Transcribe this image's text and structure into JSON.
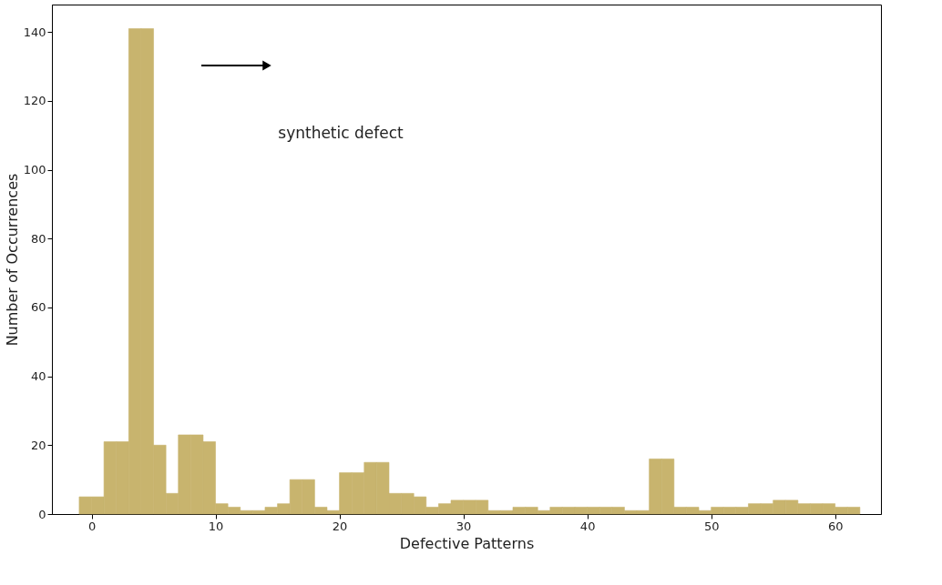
{
  "chart_data": {
    "type": "histogram",
    "xlabel": "Defective Patterns",
    "ylabel": "Number of Occurrences",
    "bins": [
      -1,
      0,
      1,
      2,
      3,
      4,
      5,
      6,
      7,
      8,
      9,
      10,
      11,
      12,
      13,
      14,
      15,
      16,
      17,
      18,
      19,
      20,
      21,
      22,
      23,
      24,
      25,
      26,
      27,
      28,
      29,
      30,
      31,
      32,
      33,
      34,
      35,
      36,
      37,
      38,
      39,
      40,
      41,
      42,
      43,
      44,
      45,
      46,
      47,
      48,
      49,
      50,
      51,
      52,
      53,
      54,
      55,
      56,
      57,
      58,
      59,
      60,
      61,
      62
    ],
    "values": [
      5,
      5,
      21,
      21,
      141,
      141,
      20,
      6,
      23,
      23,
      21,
      3,
      2,
      1,
      1,
      2,
      3,
      10,
      10,
      2,
      1,
      12,
      12,
      15,
      15,
      6,
      6,
      5,
      2,
      3,
      4,
      4,
      4,
      1,
      1,
      2,
      2,
      1,
      2,
      2,
      2,
      2,
      2,
      2,
      1,
      1,
      16,
      16,
      2,
      2,
      1,
      2,
      2,
      2,
      3,
      3,
      4,
      4,
      3,
      3,
      3,
      2,
      2
    ],
    "color": "#c8b46e",
    "xlim": [
      -3.2,
      63.7
    ],
    "xticks": [
      0,
      10,
      20,
      30,
      40,
      50,
      60
    ],
    "ylim": [
      0,
      148
    ],
    "yticks": [
      0,
      20,
      40,
      60,
      80,
      100,
      120,
      140
    ],
    "grid": false,
    "annotations": [
      "synthetic defect"
    ]
  }
}
